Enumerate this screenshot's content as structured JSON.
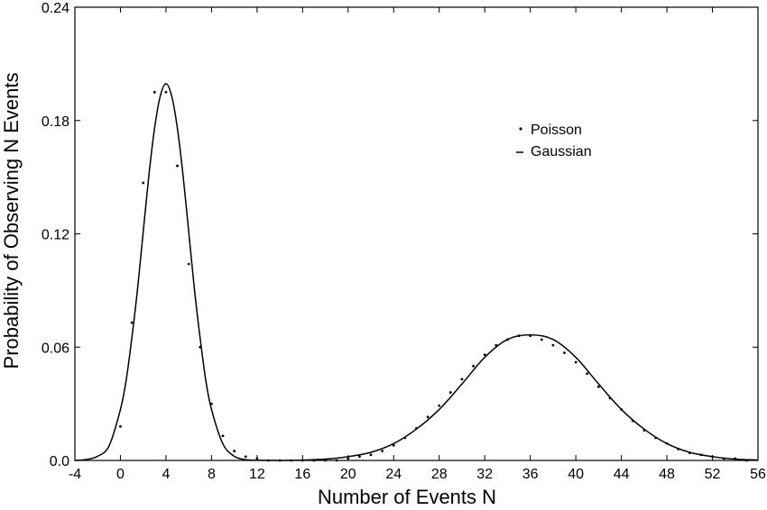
{
  "chart_data": {
    "type": "scatter",
    "title": "",
    "xlabel": "Number of Events N",
    "ylabel": "Probability of Observing N Events",
    "xlim": [
      -4,
      56
    ],
    "ylim": [
      0,
      0.24
    ],
    "x_ticks": [
      -4,
      0,
      4,
      8,
      12,
      16,
      20,
      24,
      28,
      32,
      36,
      40,
      44,
      48,
      52,
      56
    ],
    "y_ticks": [
      0.0,
      0.06,
      0.12,
      0.18,
      0.24
    ],
    "x_tick_labels": [
      "-4",
      "0",
      "4",
      "8",
      "12",
      "16",
      "20",
      "24",
      "28",
      "32",
      "36",
      "40",
      "44",
      "48",
      "52",
      "56"
    ],
    "y_tick_labels": [
      "0.0",
      "0.06",
      "0.12",
      "0.18",
      "0.24"
    ],
    "grid": false,
    "legend": {
      "position": "top-right",
      "entries": [
        {
          "label": "Poisson",
          "marker": "dot"
        },
        {
          "label": "Gaussian",
          "marker": "line"
        }
      ]
    },
    "series": [
      {
        "name": "Poisson",
        "kind": "points",
        "color": "#000000",
        "points": [
          {
            "x": 0,
            "y": 0.018
          },
          {
            "x": 1,
            "y": 0.073
          },
          {
            "x": 2,
            "y": 0.147
          },
          {
            "x": 3,
            "y": 0.195
          },
          {
            "x": 4,
            "y": 0.195
          },
          {
            "x": 5,
            "y": 0.156
          },
          {
            "x": 6,
            "y": 0.104
          },
          {
            "x": 7,
            "y": 0.06
          },
          {
            "x": 8,
            "y": 0.03
          },
          {
            "x": 9,
            "y": 0.013
          },
          {
            "x": 10,
            "y": 0.005
          },
          {
            "x": 11,
            "y": 0.002
          },
          {
            "x": 12,
            "y": 0.001
          },
          {
            "x": 13,
            "y": 0.0
          },
          {
            "x": 14,
            "y": 0.0
          },
          {
            "x": 15,
            "y": 0.0
          },
          {
            "x": 16,
            "y": 0.0
          },
          {
            "x": 17,
            "y": 0.0
          },
          {
            "x": 18,
            "y": 0.0
          },
          {
            "x": 19,
            "y": 0.0
          },
          {
            "x": 20,
            "y": 0.001
          },
          {
            "x": 21,
            "y": 0.002
          },
          {
            "x": 22,
            "y": 0.003
          },
          {
            "x": 23,
            "y": 0.005
          },
          {
            "x": 24,
            "y": 0.008
          },
          {
            "x": 25,
            "y": 0.012
          },
          {
            "x": 26,
            "y": 0.017
          },
          {
            "x": 27,
            "y": 0.023
          },
          {
            "x": 28,
            "y": 0.029
          },
          {
            "x": 29,
            "y": 0.036
          },
          {
            "x": 30,
            "y": 0.043
          },
          {
            "x": 31,
            "y": 0.05
          },
          {
            "x": 32,
            "y": 0.056
          },
          {
            "x": 33,
            "y": 0.061
          },
          {
            "x": 34,
            "y": 0.064
          },
          {
            "x": 35,
            "y": 0.066
          },
          {
            "x": 36,
            "y": 0.066
          },
          {
            "x": 37,
            "y": 0.064
          },
          {
            "x": 38,
            "y": 0.061
          },
          {
            "x": 39,
            "y": 0.057
          },
          {
            "x": 40,
            "y": 0.052
          },
          {
            "x": 41,
            "y": 0.046
          },
          {
            "x": 42,
            "y": 0.039
          },
          {
            "x": 43,
            "y": 0.033
          },
          {
            "x": 44,
            "y": 0.027
          },
          {
            "x": 45,
            "y": 0.021
          },
          {
            "x": 46,
            "y": 0.016
          },
          {
            "x": 47,
            "y": 0.012
          },
          {
            "x": 48,
            "y": 0.009
          },
          {
            "x": 49,
            "y": 0.006
          },
          {
            "x": 50,
            "y": 0.004
          },
          {
            "x": 51,
            "y": 0.003
          },
          {
            "x": 52,
            "y": 0.002
          },
          {
            "x": 53,
            "y": 0.001
          },
          {
            "x": 54,
            "y": 0.001
          },
          {
            "x": 55,
            "y": 0.0
          }
        ]
      },
      {
        "name": "Gaussian",
        "kind": "line",
        "color": "#000000",
        "points": [
          {
            "x": -4,
            "y": 0.0
          },
          {
            "x": -3,
            "y": 0.0005
          },
          {
            "x": -2,
            "y": 0.0022
          },
          {
            "x": -1,
            "y": 0.0077
          },
          {
            "x": 0,
            "y": 0.027
          },
          {
            "x": 0.5,
            "y": 0.0423
          },
          {
            "x": 1,
            "y": 0.0648
          },
          {
            "x": 1.5,
            "y": 0.0906
          },
          {
            "x": 2,
            "y": 0.121
          },
          {
            "x": 2.5,
            "y": 0.151
          },
          {
            "x": 3,
            "y": 0.176
          },
          {
            "x": 3.5,
            "y": 0.193
          },
          {
            "x": 4,
            "y": 0.1995
          },
          {
            "x": 4.5,
            "y": 0.193
          },
          {
            "x": 5,
            "y": 0.176
          },
          {
            "x": 5.5,
            "y": 0.151
          },
          {
            "x": 6,
            "y": 0.121
          },
          {
            "x": 6.5,
            "y": 0.0906
          },
          {
            "x": 7,
            "y": 0.0648
          },
          {
            "x": 7.5,
            "y": 0.0423
          },
          {
            "x": 8,
            "y": 0.027
          },
          {
            "x": 9,
            "y": 0.0088
          },
          {
            "x": 10,
            "y": 0.0022
          },
          {
            "x": 11,
            "y": 0.0004
          },
          {
            "x": 12,
            "y": 0.0001
          },
          {
            "x": 14,
            "y": 0.0
          },
          {
            "x": 16,
            "y": 0.0002
          },
          {
            "x": 18,
            "y": 0.0007
          },
          {
            "x": 20,
            "y": 0.002
          },
          {
            "x": 22,
            "y": 0.0043
          },
          {
            "x": 24,
            "y": 0.0089
          },
          {
            "x": 26,
            "y": 0.0166
          },
          {
            "x": 28,
            "y": 0.027
          },
          {
            "x": 30,
            "y": 0.0405
          },
          {
            "x": 32,
            "y": 0.0546
          },
          {
            "x": 34,
            "y": 0.0641
          },
          {
            "x": 36,
            "y": 0.0665
          },
          {
            "x": 38,
            "y": 0.0641
          },
          {
            "x": 40,
            "y": 0.0546
          },
          {
            "x": 42,
            "y": 0.0405
          },
          {
            "x": 44,
            "y": 0.027
          },
          {
            "x": 46,
            "y": 0.0166
          },
          {
            "x": 48,
            "y": 0.0089
          },
          {
            "x": 50,
            "y": 0.0043
          },
          {
            "x": 52,
            "y": 0.002
          },
          {
            "x": 54,
            "y": 0.0007
          },
          {
            "x": 56,
            "y": 0.0002
          }
        ]
      }
    ]
  }
}
